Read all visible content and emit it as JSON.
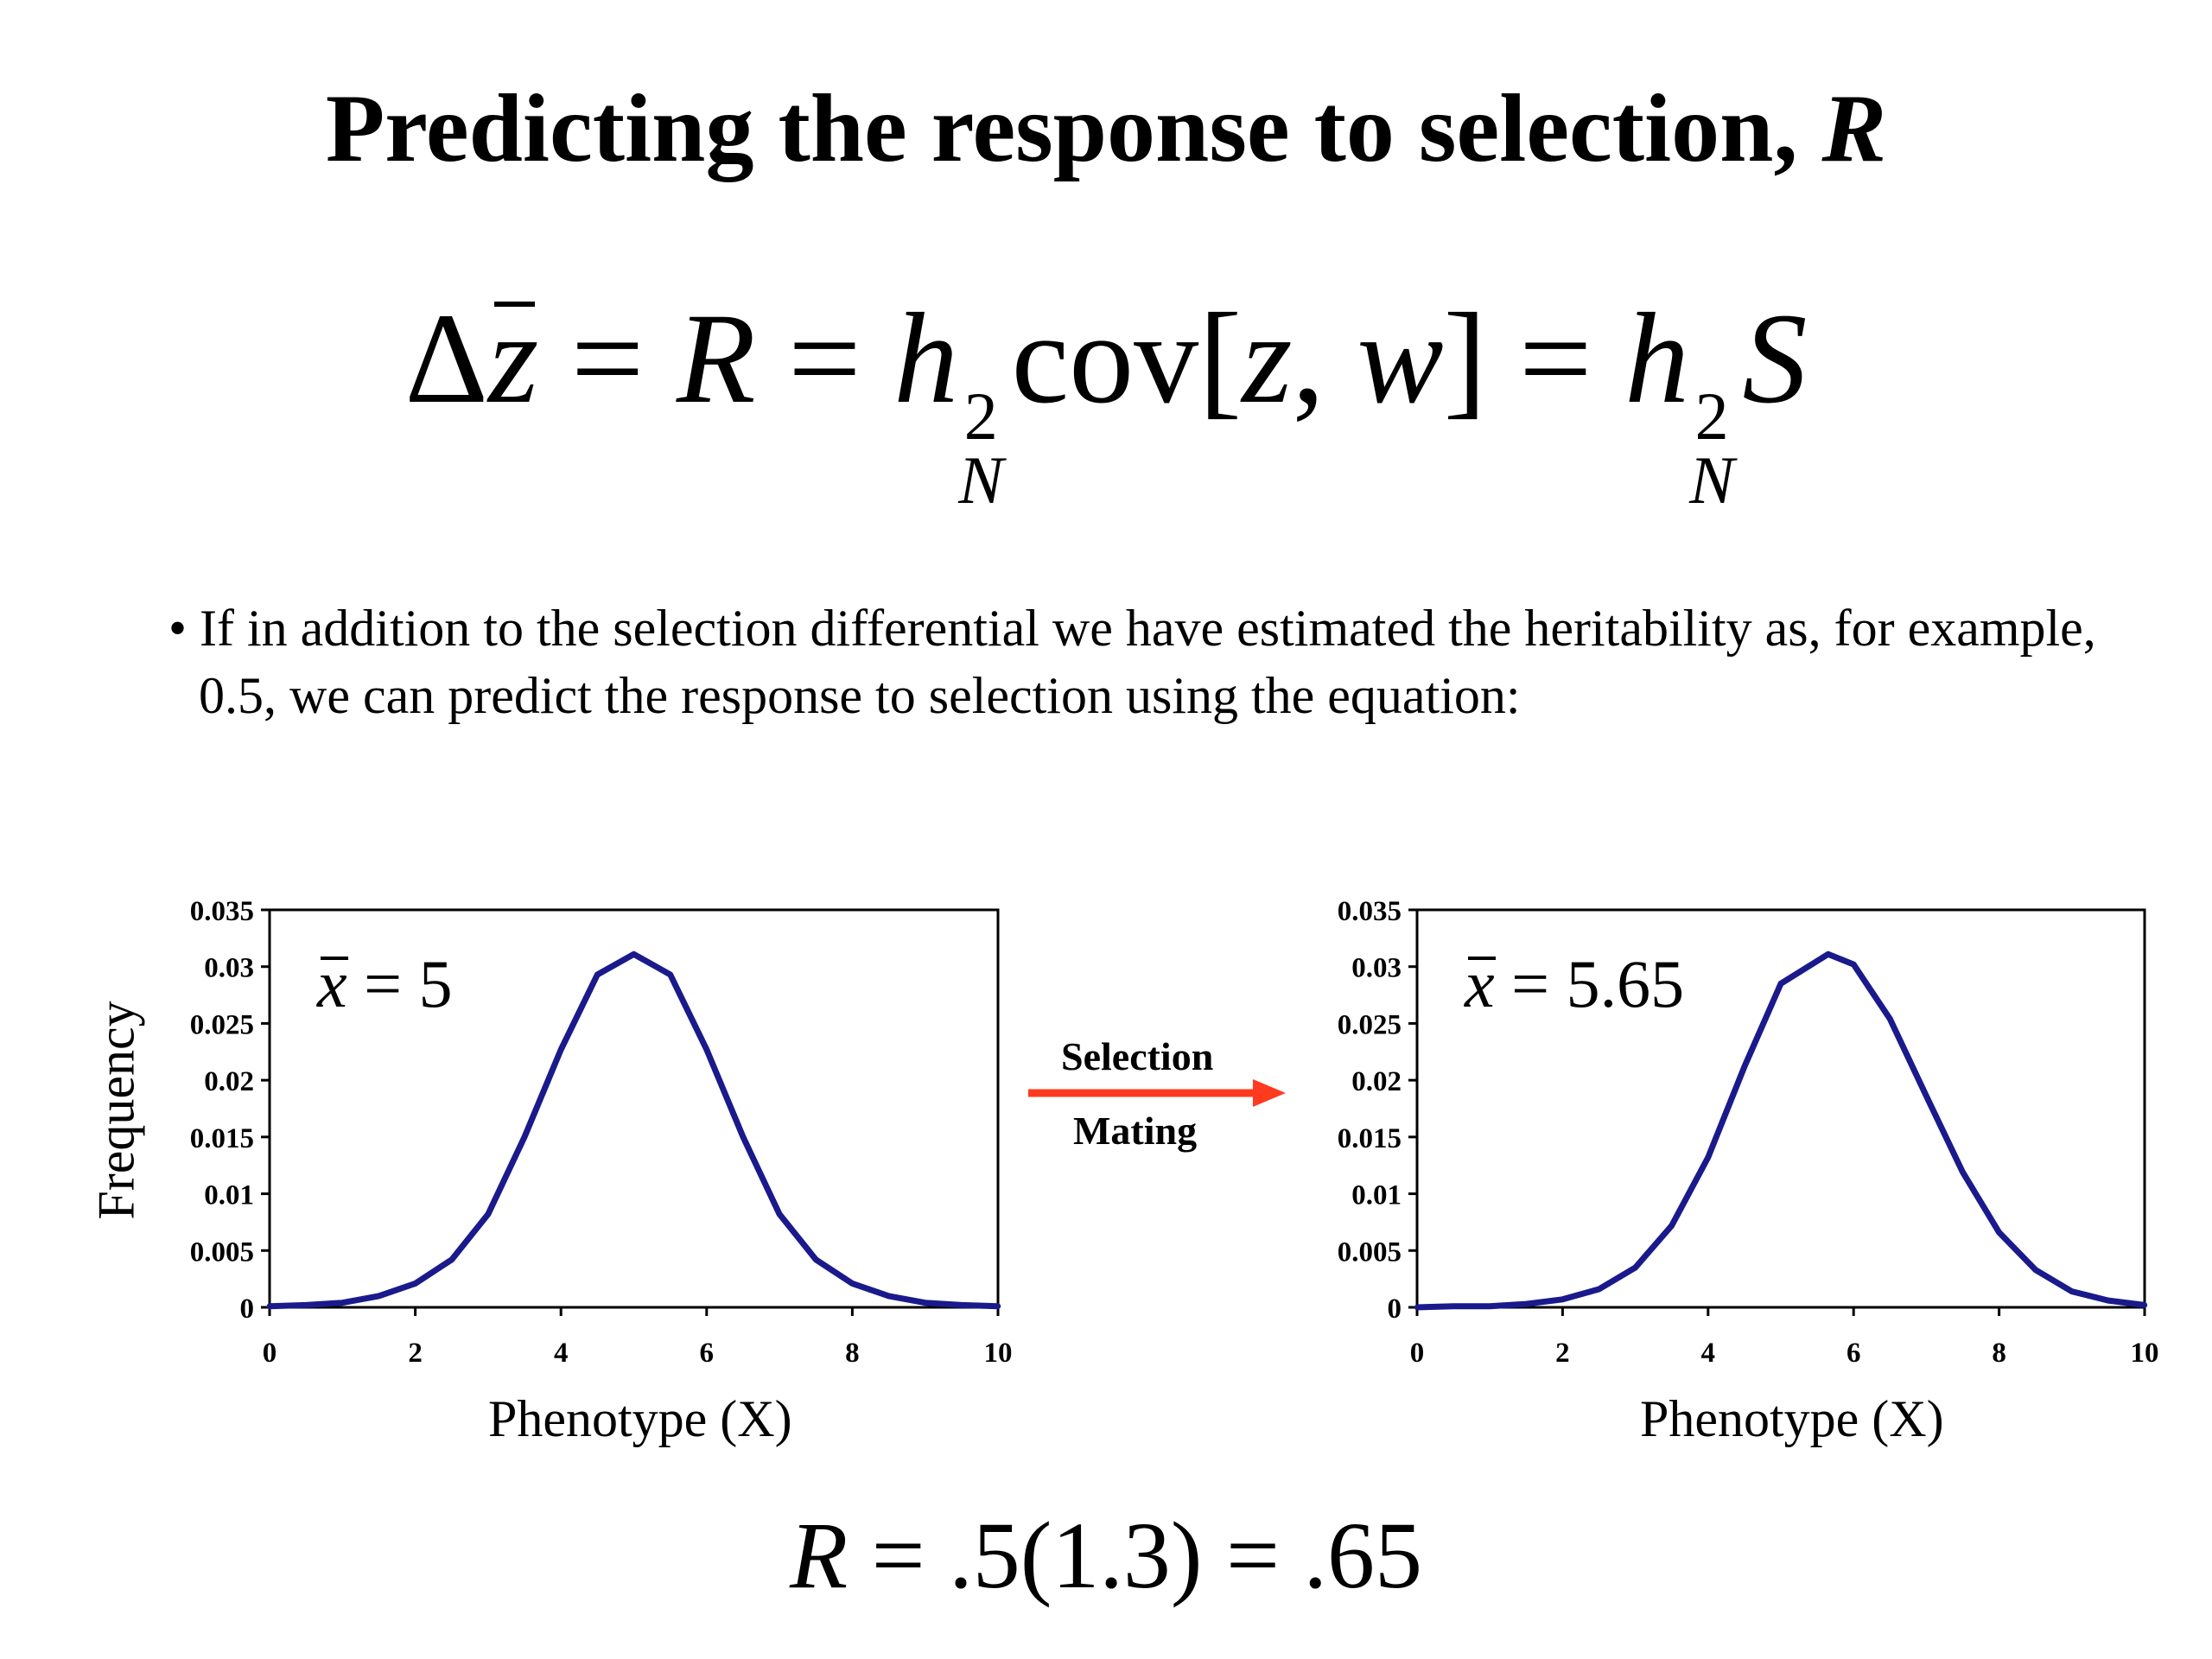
{
  "slide": {
    "title": "Predicting the response to selection,",
    "title_symbol": "R",
    "equation": {
      "lhs": "Δ",
      "zbar": "z",
      "eq1": " = ",
      "R": "R",
      "eq2": " = ",
      "h": "h",
      "sup": "2",
      "sub": "N",
      "cov": "cov[",
      "z": "z",
      "comma": ", ",
      "w": "w",
      "close": "]",
      "eq3": " = ",
      "h2": "h",
      "sup2": "2",
      "sub2": "N",
      "S": "S"
    },
    "bullet": "• If in addition to the selection differential we have estimated the heritability as, for example, 0.5, we can predict the response to selection using the equation:",
    "arrow_top": "Selection",
    "arrow_bottom": "Mating",
    "arrow_color": "#ff3b1f",
    "result_equation": {
      "R": "R",
      "rest": " = .5(1.3) = .65"
    }
  },
  "chart_data": [
    {
      "type": "line",
      "xlabel": "Phenotype (X)",
      "ylabel": "Frequency",
      "xlim": [
        0,
        10
      ],
      "ylim": [
        0,
        0.035
      ],
      "xticks": [
        0,
        2,
        4,
        6,
        8,
        10
      ],
      "yticks": [
        "0",
        "0.005",
        "0.01",
        "0.015",
        "0.02",
        "0.025",
        "0.03",
        "0.035"
      ],
      "annotation": {
        "var": "x",
        "text": " = 5"
      },
      "series": [
        {
          "color": "#1a1a8c",
          "x": [
            0,
            0.5,
            1,
            1.5,
            2,
            2.5,
            3,
            3.5,
            4,
            4.5,
            5,
            5.5,
            6,
            6.5,
            7,
            7.5,
            8,
            8.5,
            9,
            9.5,
            10
          ],
          "y": [
            0.0001,
            0.0002,
            0.0004,
            0.001,
            0.0021,
            0.0042,
            0.0082,
            0.015,
            0.0227,
            0.0293,
            0.0311,
            0.0293,
            0.0227,
            0.015,
            0.0082,
            0.0042,
            0.0021,
            0.001,
            0.0004,
            0.0002,
            0.0001
          ]
        }
      ]
    },
    {
      "type": "line",
      "xlabel": "Phenotype (X)",
      "ylabel": "",
      "xlim": [
        0,
        10
      ],
      "ylim": [
        0,
        0.035
      ],
      "xticks": [
        0,
        2,
        4,
        6,
        8,
        10
      ],
      "yticks": [
        "0",
        "0.005",
        "0.01",
        "0.015",
        "0.02",
        "0.025",
        "0.03",
        "0.035"
      ],
      "annotation": {
        "var": "x",
        "text": " = 5.65"
      },
      "series": [
        {
          "color": "#1a1a8c",
          "x": [
            0,
            0.5,
            1,
            1.5,
            2,
            2.5,
            3,
            3.5,
            4,
            4.5,
            5,
            5.65,
            6,
            6.5,
            7,
            7.5,
            8,
            8.5,
            9,
            9.5,
            10
          ],
          "y": [
            0.0,
            0.0001,
            0.0001,
            0.0003,
            0.0007,
            0.0016,
            0.0035,
            0.0072,
            0.0132,
            0.0212,
            0.0285,
            0.0311,
            0.0302,
            0.0254,
            0.0186,
            0.0119,
            0.0066,
            0.0033,
            0.0014,
            0.0006,
            0.0002
          ]
        }
      ]
    }
  ]
}
